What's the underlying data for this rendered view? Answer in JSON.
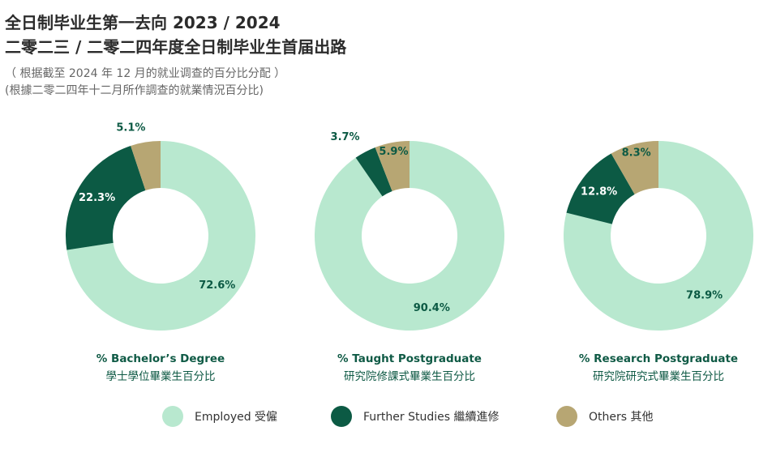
{
  "header": {
    "title_line1": "全日制毕业生第一去向 2023 / 2024",
    "title_line2": "二零二三 / 二零二四年度全日制毕业生首届出路",
    "subtitle_line1": "（ 根据截至 2024 年 12 月的就业调查的百分比分配 ）",
    "subtitle_line2": "(根據二零二四年十二月所作調查的就業情況百分比)"
  },
  "colors": {
    "employed": "#b8e8cf",
    "further_studies": "#0c5a44",
    "others": "#b7a673",
    "label_dark": "#0c5a44"
  },
  "legend": [
    {
      "key": "employed",
      "label": "Employed 受僱"
    },
    {
      "key": "further_studies",
      "label": "Further Studies 繼續進修"
    },
    {
      "key": "others",
      "label": "Others 其他"
    }
  ],
  "chart_data": [
    {
      "type": "pie",
      "title": "% Bachelor’s Degree",
      "subtitle": "學士學位畢業生百分比",
      "categories": [
        "Employed 受僱",
        "Further Studies 繼續進修",
        "Others 其他"
      ],
      "values": [
        72.6,
        22.3,
        5.1
      ],
      "value_labels": [
        "72.6%",
        "22.3%",
        "5.1%"
      ]
    },
    {
      "type": "pie",
      "title": "% Taught Postgraduate",
      "subtitle": "研究院修課式畢業生百分比",
      "categories": [
        "Employed 受僱",
        "Further Studies 繼續進修",
        "Others 其他"
      ],
      "values": [
        90.4,
        3.7,
        5.9
      ],
      "value_labels": [
        "90.4%",
        "3.7%",
        "5.9%"
      ]
    },
    {
      "type": "pie",
      "title": "% Research Postgraduate",
      "subtitle": "研究院研究式畢業生百分比",
      "categories": [
        "Employed 受僱",
        "Further Studies 繼續進修",
        "Others 其他"
      ],
      "values": [
        78.9,
        12.8,
        8.3
      ],
      "value_labels": [
        "78.9%",
        "12.8%",
        "8.3%"
      ]
    }
  ]
}
